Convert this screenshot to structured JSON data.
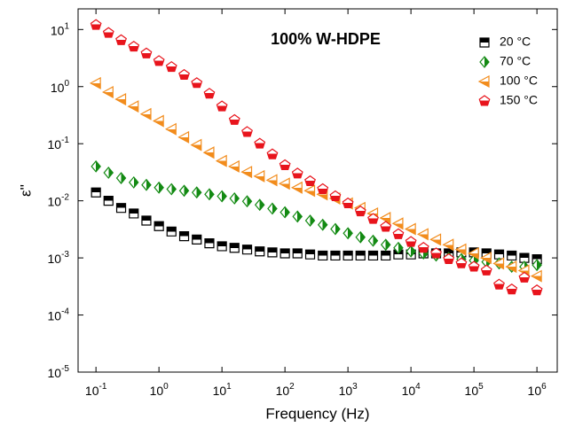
{
  "chart_data": {
    "type": "scatter",
    "title": "100% W-HDPE",
    "x_label": "Frequency (Hz)",
    "y_label": "ε''",
    "x_log": true,
    "y_log": true,
    "xlim": [
      0.052,
      2100000
    ],
    "ylim": [
      1e-05,
      23
    ],
    "xticks": [
      {
        "value": 0.1,
        "label": "10",
        "exponent": "-1"
      },
      {
        "value": 1,
        "label": "10",
        "exponent": "0"
      },
      {
        "value": 10,
        "label": "10",
        "exponent": "1"
      },
      {
        "value": 100,
        "label": "10",
        "exponent": "2"
      },
      {
        "value": 1000,
        "label": "10",
        "exponent": "3"
      },
      {
        "value": 10000,
        "label": "10",
        "exponent": "4"
      },
      {
        "value": 100000,
        "label": "10",
        "exponent": "5"
      },
      {
        "value": 1000000,
        "label": "10",
        "exponent": "6"
      }
    ],
    "yticks": [
      {
        "value": 1e-05,
        "label": "10",
        "exponent": "-5"
      },
      {
        "value": 0.0001,
        "label": "10",
        "exponent": "-4"
      },
      {
        "value": 0.001,
        "label": "10",
        "exponent": "-3"
      },
      {
        "value": 0.01,
        "label": "10",
        "exponent": "-2"
      },
      {
        "value": 0.1,
        "label": "10",
        "exponent": "-1"
      },
      {
        "value": 1,
        "label": "10",
        "exponent": "0"
      },
      {
        "value": 10,
        "label": "10",
        "exponent": "1"
      }
    ],
    "x": [
      0.1,
      0.158,
      0.251,
      0.398,
      0.631,
      1,
      1.58,
      2.51,
      3.98,
      6.31,
      10,
      15.8,
      25.1,
      39.8,
      63.1,
      100,
      158,
      251,
      398,
      631,
      1000,
      1580,
      2510,
      3980,
      6310,
      10000,
      15800,
      25100,
      39800,
      63100,
      100000,
      158000,
      251000,
      398000,
      631000,
      1000000
    ],
    "legend": "upper right",
    "series": [
      {
        "name": "20 °C",
        "color": "#000000",
        "marker": "square",
        "values": [
          0.014,
          0.01,
          0.0075,
          0.006,
          0.0045,
          0.0036,
          0.0029,
          0.0024,
          0.0021,
          0.0018,
          0.0016,
          0.0015,
          0.0014,
          0.0013,
          0.00125,
          0.0012,
          0.0012,
          0.00115,
          0.0011,
          0.0011,
          0.0011,
          0.0011,
          0.0011,
          0.0011,
          0.00115,
          0.00115,
          0.0012,
          0.0012,
          0.0012,
          0.00125,
          0.00125,
          0.0012,
          0.00115,
          0.0011,
          0.001,
          0.00095
        ]
      },
      {
        "name": "70 °C",
        "color": "#138a13",
        "marker": "diamond",
        "values": [
          0.04,
          0.031,
          0.025,
          0.021,
          0.019,
          0.017,
          0.016,
          0.015,
          0.014,
          0.013,
          0.012,
          0.011,
          0.0098,
          0.0085,
          0.0073,
          0.0063,
          0.0053,
          0.0045,
          0.0038,
          0.0032,
          0.0027,
          0.0023,
          0.002,
          0.0017,
          0.0015,
          0.0013,
          0.0012,
          0.0011,
          0.001,
          0.00095,
          0.0009,
          0.00085,
          0.0008,
          0.0007,
          0.0007,
          0.00075
        ]
      },
      {
        "name": "100 °C",
        "color": "#f28c1c",
        "marker": "triangle-left",
        "values": [
          1.15,
          0.8,
          0.6,
          0.45,
          0.33,
          0.25,
          0.18,
          0.13,
          0.095,
          0.07,
          0.05,
          0.04,
          0.032,
          0.027,
          0.023,
          0.02,
          0.017,
          0.015,
          0.013,
          0.011,
          0.009,
          0.0075,
          0.006,
          0.005,
          0.004,
          0.0032,
          0.0026,
          0.0021,
          0.0017,
          0.0014,
          0.0012,
          0.001,
          0.0008,
          0.0007,
          0.0006,
          0.00048
        ]
      },
      {
        "name": "150 °C",
        "color": "#e8141c",
        "marker": "pentagon",
        "values": [
          12,
          8.7,
          6.5,
          5,
          3.8,
          2.8,
          2.2,
          1.6,
          1.15,
          0.75,
          0.45,
          0.26,
          0.16,
          0.1,
          0.065,
          0.042,
          0.03,
          0.022,
          0.016,
          0.012,
          0.009,
          0.0065,
          0.0048,
          0.0035,
          0.0026,
          0.0019,
          0.0015,
          0.0012,
          0.00095,
          0.0008,
          0.0007,
          0.0006,
          0.00034,
          0.00028,
          0.00045,
          0.00027
        ]
      }
    ]
  }
}
